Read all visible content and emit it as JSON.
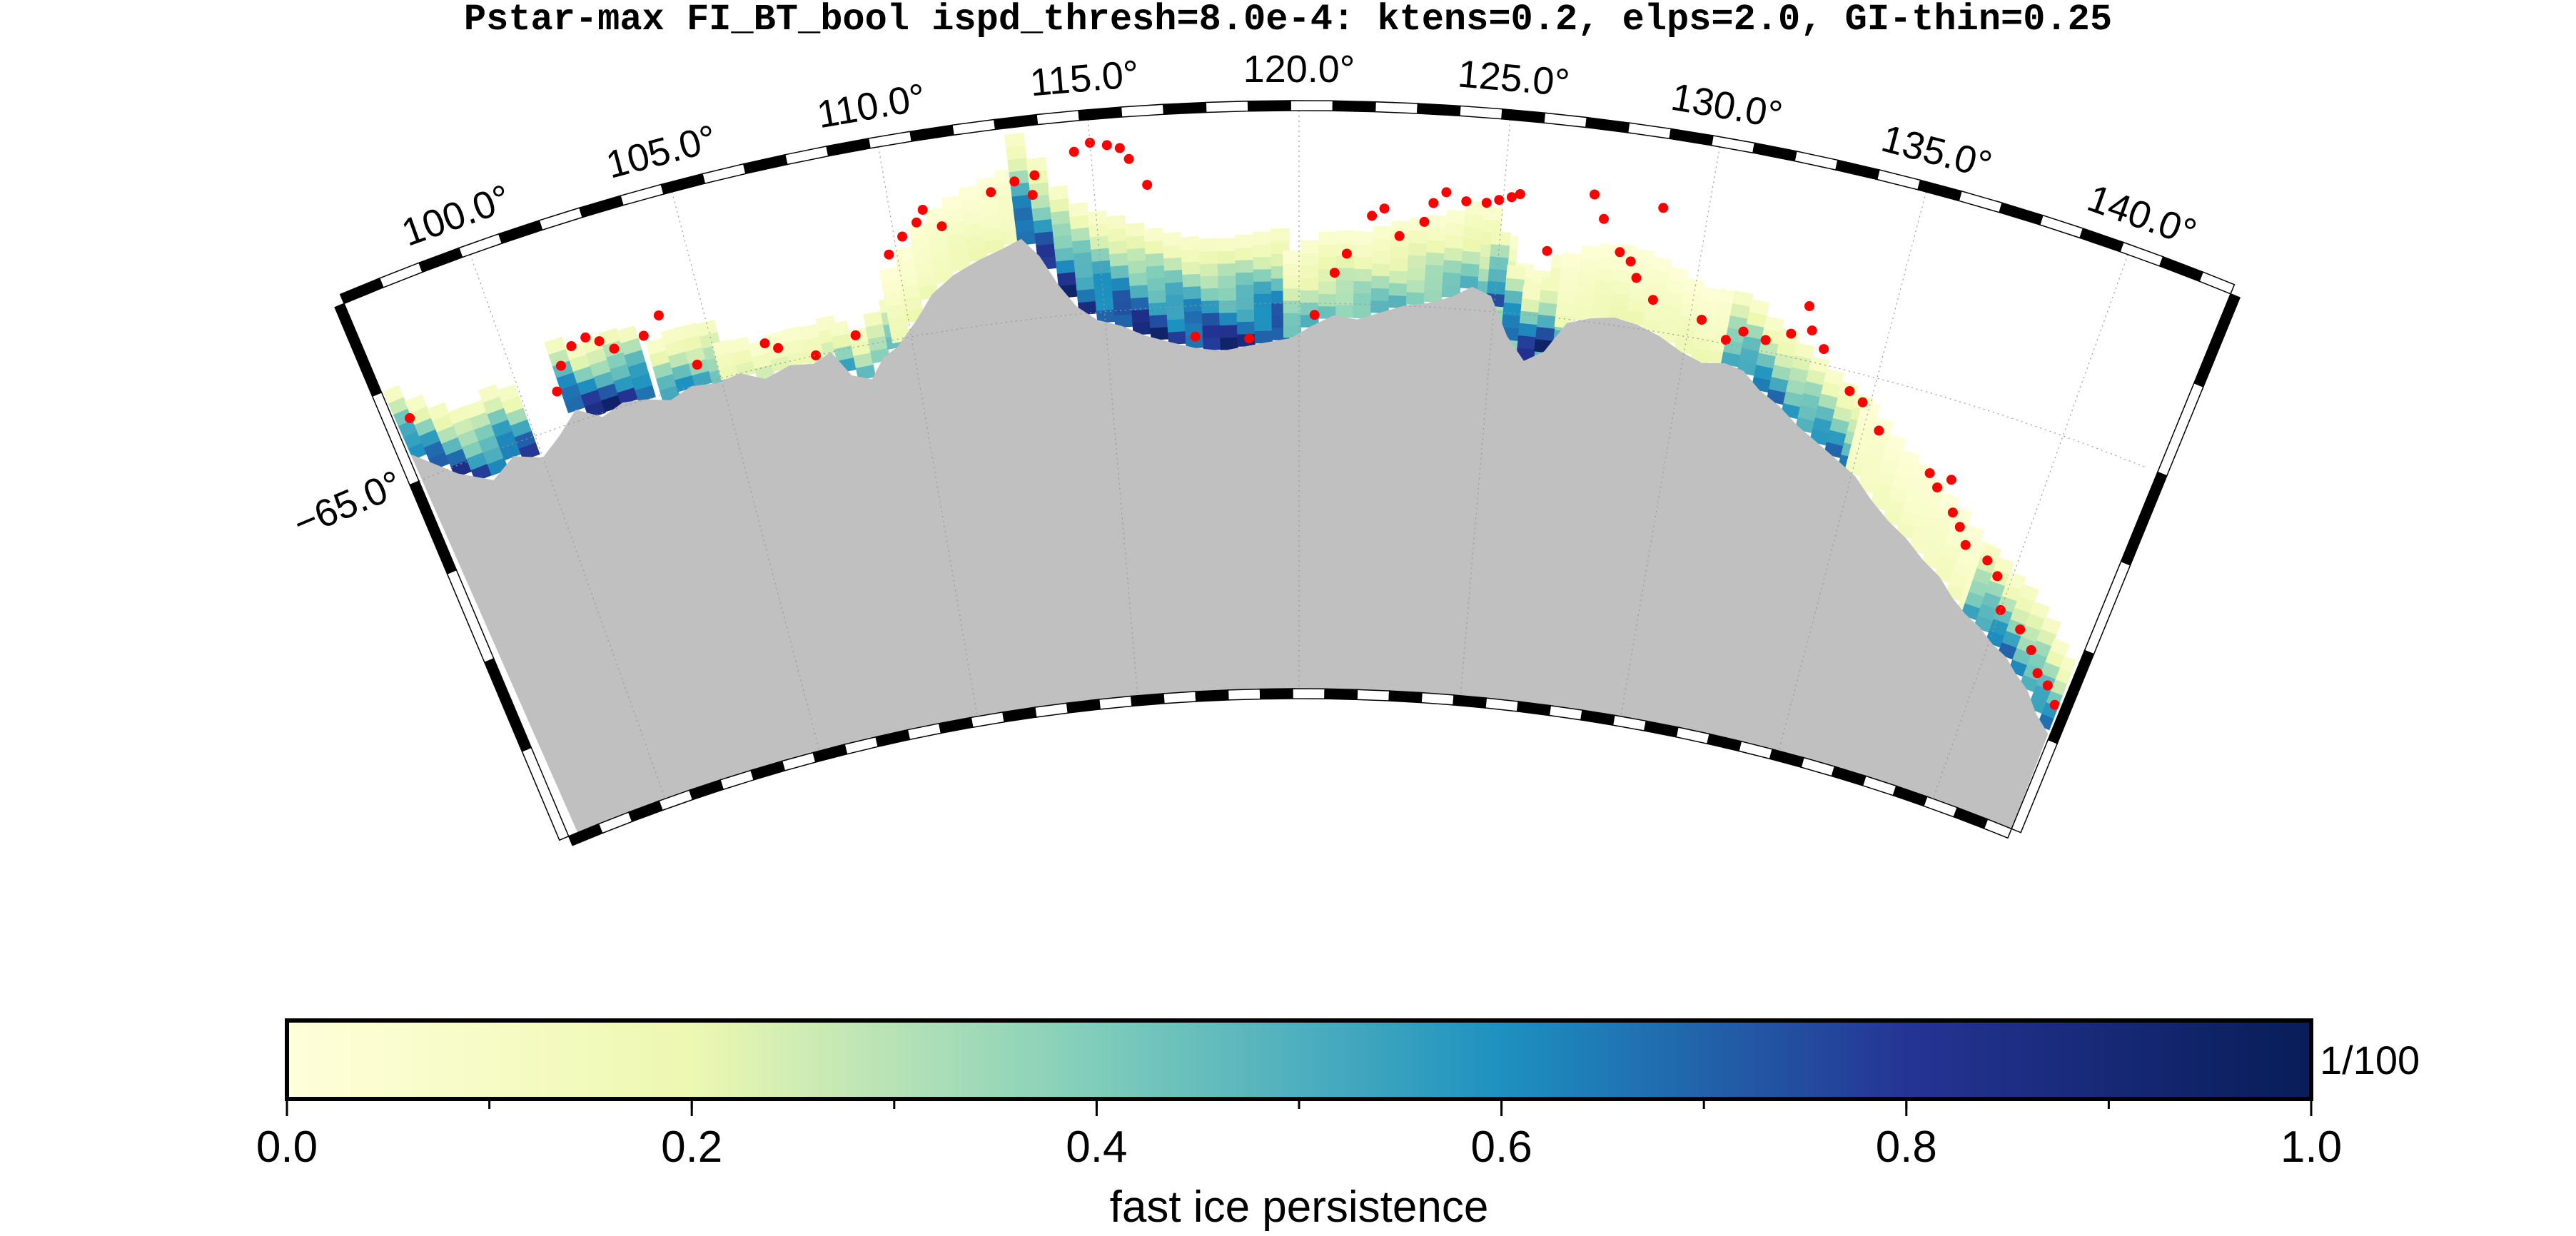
{
  "title": "Pstar-max FI_BT_bool ispd_thresh=8.0e-4: ktens=0.2, elps=2.0, GI-thin=0.25",
  "map": {
    "projection": "polar conic sector",
    "lon_range": [
      96.8,
      142.6
    ],
    "lat_range": [
      -70.0,
      -62.5
    ],
    "longitude_labels": [
      "100.0°",
      "105.0°",
      "110.0°",
      "115.0°",
      "120.0°",
      "125.0°",
      "130.0°",
      "135.0°",
      "140.0°"
    ],
    "longitudes": [
      100,
      105,
      110,
      115,
      120,
      125,
      130,
      135,
      140
    ],
    "latitude_label": "−65.0°",
    "latitude": -65.0,
    "land_color": "#c0c0c0",
    "grounded_iceberg_marker_color": "#ff0000",
    "grounded_iceberg_marker": "red dot"
  },
  "colorbar": {
    "title": "fast ice persistence",
    "unit": "1/100",
    "ticks": [
      "0.0",
      "0.2",
      "0.4",
      "0.6",
      "0.8",
      "1.0"
    ],
    "tick_values": [
      0.0,
      0.2,
      0.4,
      0.6,
      0.8,
      1.0
    ],
    "range": [
      0.0,
      1.0
    ],
    "minor_step": 0.1,
    "colormap_stops": [
      {
        "v": 0.0,
        "color": "#ffffd9"
      },
      {
        "v": 0.2,
        "color": "#edf8b1"
      },
      {
        "v": 0.4,
        "color": "#7fcdbb"
      },
      {
        "v": 0.6,
        "color": "#1d91c0"
      },
      {
        "v": 0.8,
        "color": "#253494"
      },
      {
        "v": 1.0,
        "color": "#081d58"
      }
    ]
  }
}
